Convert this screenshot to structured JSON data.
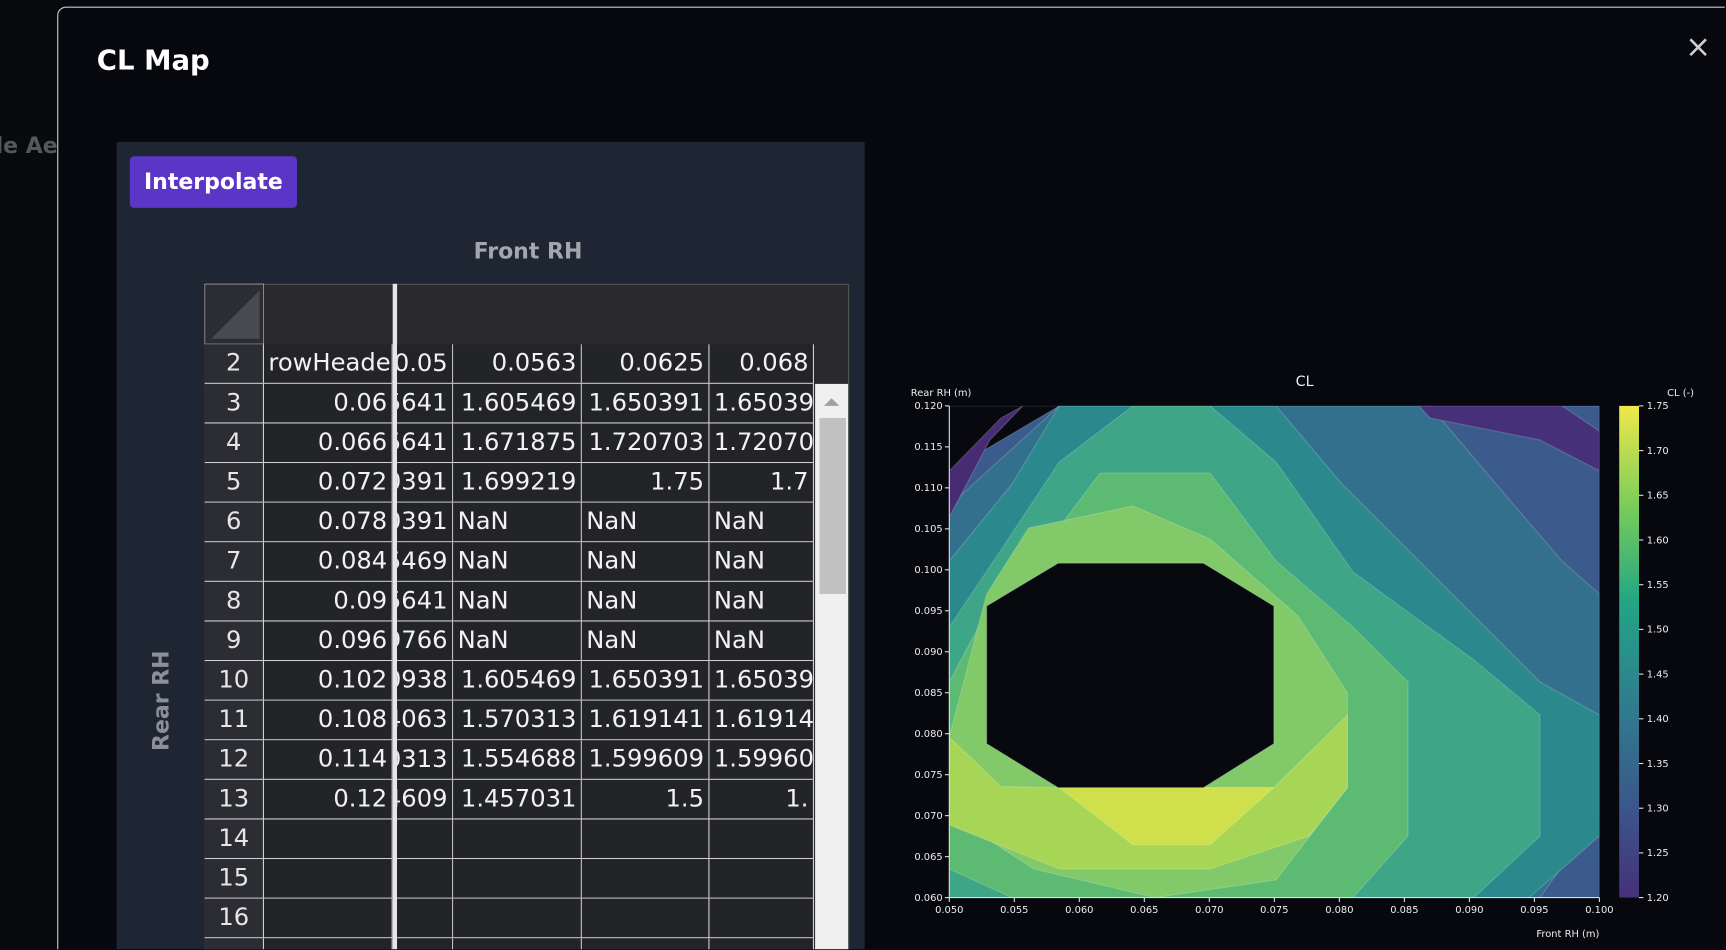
{
  "sidebar": {
    "text": "le Aer"
  },
  "dialog": {
    "title": "CL Map",
    "close": "×"
  },
  "toolbar": {
    "button": "Interpolate"
  },
  "table": {
    "column_title": "Front RH",
    "row_title": "Rear RH",
    "header": [
      "2",
      "rowHeade",
      "0.05",
      "0.0563",
      "0.0625",
      "0.068"
    ],
    "rows": [
      [
        "3",
        "0.06",
        "5641",
        "1.605469",
        "1.650391",
        "1.65039"
      ],
      [
        "4",
        "0.066",
        "5641",
        "1.671875",
        "1.720703",
        "1.72070"
      ],
      [
        "5",
        "0.072",
        "0391",
        "1.699219",
        "1.75",
        "1.7"
      ],
      [
        "6",
        "0.078",
        "0391",
        "NaN",
        "NaN",
        "NaN"
      ],
      [
        "7",
        "0.084",
        "5469",
        "NaN",
        "NaN",
        "NaN"
      ],
      [
        "8",
        "0.09",
        "5641",
        "NaN",
        "NaN",
        "NaN"
      ],
      [
        "9",
        "0.096",
        "9766",
        "NaN",
        "NaN",
        "NaN"
      ],
      [
        "10",
        "0.102",
        "0938",
        "1.605469",
        "1.650391",
        "1.65039"
      ],
      [
        "11",
        "0.108",
        "4063",
        "1.570313",
        "1.619141",
        "1.61914"
      ],
      [
        "12",
        "0.114",
        "0313",
        "1.554688",
        "1.599609",
        "1.59960"
      ],
      [
        "13",
        "0.12",
        "4609",
        "1.457031",
        "1.5",
        "1."
      ],
      [
        "14"
      ],
      [
        "15"
      ],
      [
        "16"
      ]
    ]
  },
  "chart_data": {
    "type": "contour",
    "title": "CL",
    "x_label": "Front RH (m)",
    "y_label": "Rear RH (m)",
    "colorbar_label": "CL (-)",
    "xlim": [
      0.05,
      0.1
    ],
    "xticks": [
      {
        "value": 0.05,
        "label": "0.050"
      },
      0.055,
      {
        "value": 0.06,
        "label": "0.060"
      },
      0.065,
      {
        "value": 0.07,
        "label": "0.070"
      },
      0.075,
      {
        "value": 0.08,
        "label": "0.080"
      },
      0.085,
      {
        "value": 0.09,
        "label": "0.090"
      },
      0.095,
      {
        "value": 0.1,
        "label": "0.100"
      }
    ],
    "ylim": [
      0.06,
      0.12
    ],
    "yticks": [
      {
        "value": 0.06,
        "label": "0.060"
      },
      0.065,
      {
        "value": 0.07,
        "label": "0.070"
      },
      0.075,
      {
        "value": 0.08,
        "label": "0.080"
      },
      0.085,
      {
        "value": 0.09,
        "label": "0.090"
      },
      0.095,
      {
        "value": 0.1,
        "label": "0.100"
      },
      0.105,
      {
        "value": 0.11,
        "label": "0.110"
      },
      0.115,
      {
        "value": 0.12,
        "label": "0.120"
      }
    ],
    "colorbar_lim": [
      1.2,
      1.75
    ],
    "colorbar_ticks": [
      {
        "value": 1.2,
        "label": "1.20"
      },
      1.25,
      {
        "value": 1.3,
        "label": "1.30"
      },
      1.35,
      {
        "value": 1.4,
        "label": "1.40"
      },
      1.45,
      {
        "value": 1.5,
        "label": "1.50"
      },
      1.55,
      {
        "value": 1.6,
        "label": "1.60"
      },
      1.65,
      {
        "value": 1.7,
        "label": "1.70"
      },
      1.75
    ]
  }
}
